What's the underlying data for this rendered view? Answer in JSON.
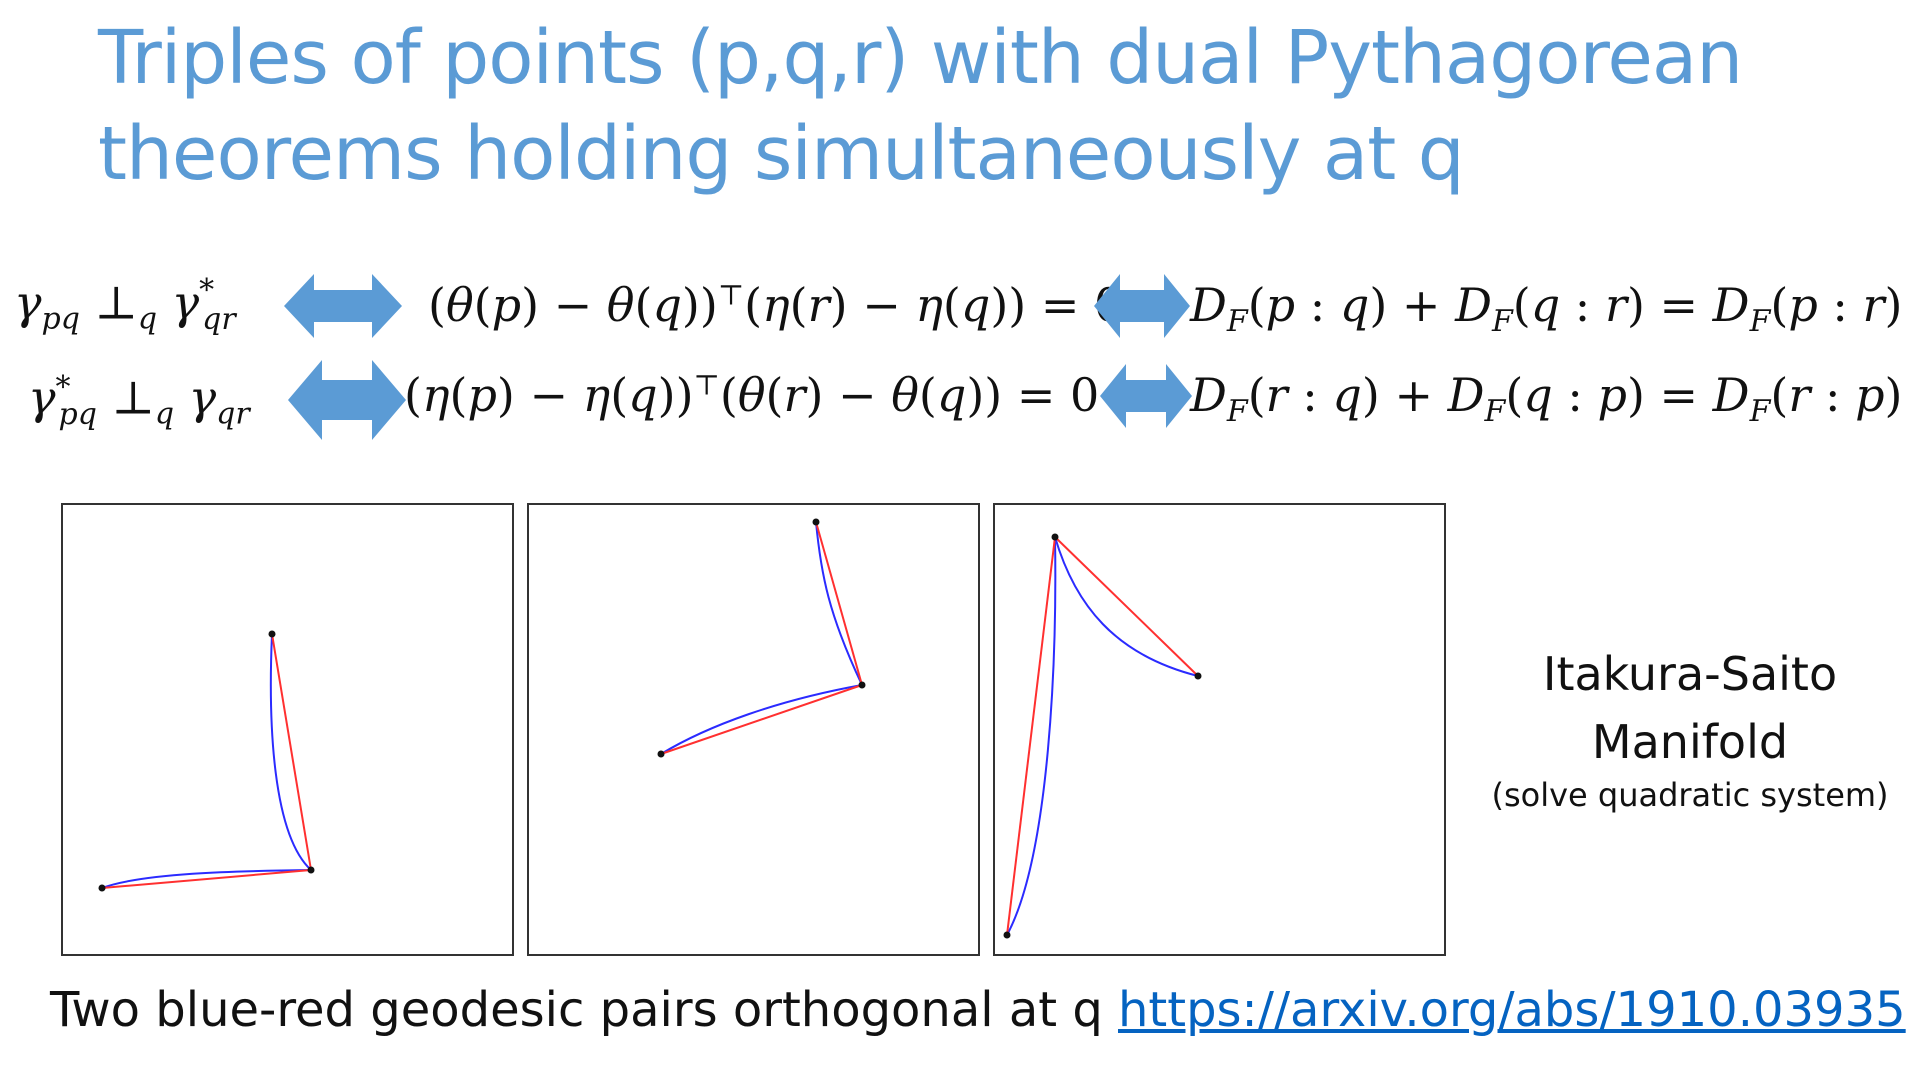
{
  "title": {
    "line1": "Triples of points (p,q,r) with dual Pythagorean",
    "line2": "theorems holding simultaneously at q"
  },
  "equations": {
    "row1": {
      "orthogonality": "γpq ⊥q γ*qr",
      "inner_product": "(θ(p) − θ(q))⊤(η(r) − η(q)) = 0",
      "pythagoras": "DF(p : q) + DF(q : r) = DF(p : r)"
    },
    "row2": {
      "orthogonality": "γ*pq ⊥q γqr",
      "inner_product": "(η(p) − η(q))⊤(θ(r) − θ(q)) = 0",
      "pythagoras": "DF(r : q) + DF(q : p) = DF(r : p)"
    }
  },
  "colors": {
    "title": "#5b9bd5",
    "arrow": "#5b9bd5",
    "geodesic_blue": "#2b2bff",
    "geodesic_red": "#ff3030",
    "link": "#0563c1"
  },
  "icons": [
    "double-arrow-icon"
  ],
  "side_label": {
    "line1": "Itakura-Saito",
    "line2": "Manifold",
    "subtitle": "(solve quadratic system)"
  },
  "caption": "Two blue-red geodesic pairs orthogonal at q",
  "link": "https://arxiv.org/abs/1910.03935"
}
